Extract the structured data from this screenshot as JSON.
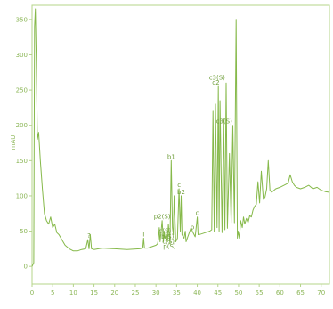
{
  "chart_data": {
    "type": "line",
    "ylabel": "mAU",
    "xlabel": "",
    "xlim": [
      0,
      72
    ],
    "ylim": [
      -25,
      370
    ],
    "x_ticks": [
      "0",
      "5",
      "10",
      "15",
      "20",
      "25",
      "30",
      "35",
      "40",
      "45",
      "50",
      "55",
      "60",
      "65",
      "70"
    ],
    "y_ticks": [
      "0",
      "50",
      "100",
      "150",
      "200",
      "250",
      "300",
      "350"
    ],
    "series": [
      {
        "color": "#86b94a",
        "x": [
          0.0,
          0.4,
          0.6,
          0.8,
          1.0,
          1.3,
          1.6,
          2.0,
          2.5,
          3.0,
          3.5,
          4.0,
          4.5,
          5.0,
          5.5,
          6.0,
          6.5,
          7.0,
          8.0,
          9.0,
          10.0,
          11.0,
          12.0,
          13.0,
          13.5,
          13.8,
          14.1,
          14.4,
          15.0,
          17.0,
          20.0,
          23.0,
          26.0,
          26.8,
          27.0,
          27.2,
          28.0,
          29.0,
          30.0,
          30.4,
          30.6,
          30.8,
          31.0,
          31.5,
          31.8,
          32.0,
          32.2,
          32.6,
          32.8,
          33.0,
          33.4,
          33.7,
          34.0,
          34.2,
          34.4,
          34.8,
          35.2,
          35.6,
          35.9,
          36.1,
          36.3,
          36.8,
          37.1,
          37.3,
          37.6,
          38.2,
          38.5,
          38.8,
          39.5,
          40.0,
          40.2,
          40.4,
          41.0,
          42.0,
          43.0,
          43.5,
          43.8,
          44.1,
          44.4,
          44.8,
          45.1,
          45.3,
          45.5,
          46.0,
          46.4,
          46.7,
          47.0,
          47.3,
          47.8,
          48.2,
          48.6,
          49.0,
          49.4,
          49.7,
          49.9,
          50.2,
          50.5,
          50.9,
          51.2,
          51.5,
          51.9,
          52.3,
          52.7,
          53.1,
          53.5,
          53.9,
          54.3,
          54.7,
          55.1,
          55.5,
          56.0,
          56.4,
          56.8,
          57.2,
          57.6,
          58.0,
          59.0,
          60.0,
          61.0,
          62.0,
          62.5,
          63.0,
          63.5,
          64.0,
          65.0,
          66.0,
          67.0,
          68.0,
          69.0,
          70.0,
          71.0,
          72.0
        ],
        "y": [
          0,
          5,
          340,
          365,
          300,
          180,
          190,
          150,
          110,
          75,
          65,
          60,
          70,
          55,
          60,
          48,
          45,
          40,
          30,
          25,
          22,
          22,
          24,
          25,
          38,
          25,
          45,
          25,
          24,
          26,
          25,
          24,
          25,
          26,
          40,
          26,
          26,
          28,
          30,
          32,
          40,
          55,
          35,
          65,
          35,
          50,
          40,
          45,
          35,
          60,
          32,
          150,
          55,
          45,
          100,
          35,
          40,
          110,
          50,
          100,
          45,
          40,
          50,
          35,
          40,
          50,
          55,
          50,
          42,
          70,
          45,
          45,
          46,
          48,
          50,
          52,
          220,
          50,
          230,
          55,
          255,
          50,
          235,
          48,
          210,
          52,
          260,
          54,
          160,
          62,
          200,
          62,
          350,
          40,
          50,
          40,
          65,
          55,
          70,
          60,
          68,
          62,
          72,
          70,
          80,
          85,
          88,
          120,
          90,
          135,
          95,
          98,
          110,
          150,
          108,
          105,
          110,
          112,
          115,
          118,
          130,
          120,
          115,
          112,
          110,
          112,
          115,
          110,
          112,
          108,
          106,
          105
        ]
      }
    ],
    "annotations": [
      {
        "x": 13.8,
        "y": 38,
        "label": "?"
      },
      {
        "x": 27.0,
        "y": 40,
        "label": "I"
      },
      {
        "x": 31.5,
        "y": 65,
        "label": "p2(S)"
      },
      {
        "x": 32.2,
        "y": 45,
        "label": "c(S)"
      },
      {
        "x": 32.8,
        "y": 37,
        "label": "b(S)"
      },
      {
        "x": 33.0,
        "y": 30,
        "label": "c(S)"
      },
      {
        "x": 33.3,
        "y": 23,
        "label": "p(S)"
      },
      {
        "x": 33.7,
        "y": 150,
        "label": "b1"
      },
      {
        "x": 35.6,
        "y": 110,
        "label": "c"
      },
      {
        "x": 36.1,
        "y": 100,
        "label": "b2"
      },
      {
        "x": 38.8,
        "y": 50,
        "label": "b"
      },
      {
        "x": 40.0,
        "y": 70,
        "label": "c"
      },
      {
        "x": 44.5,
        "y": 255,
        "label": "c2"
      },
      {
        "x": 44.8,
        "y": 262,
        "label": "c3(S)"
      },
      {
        "x": 46.5,
        "y": 200,
        "label": "c3(S)"
      }
    ]
  }
}
